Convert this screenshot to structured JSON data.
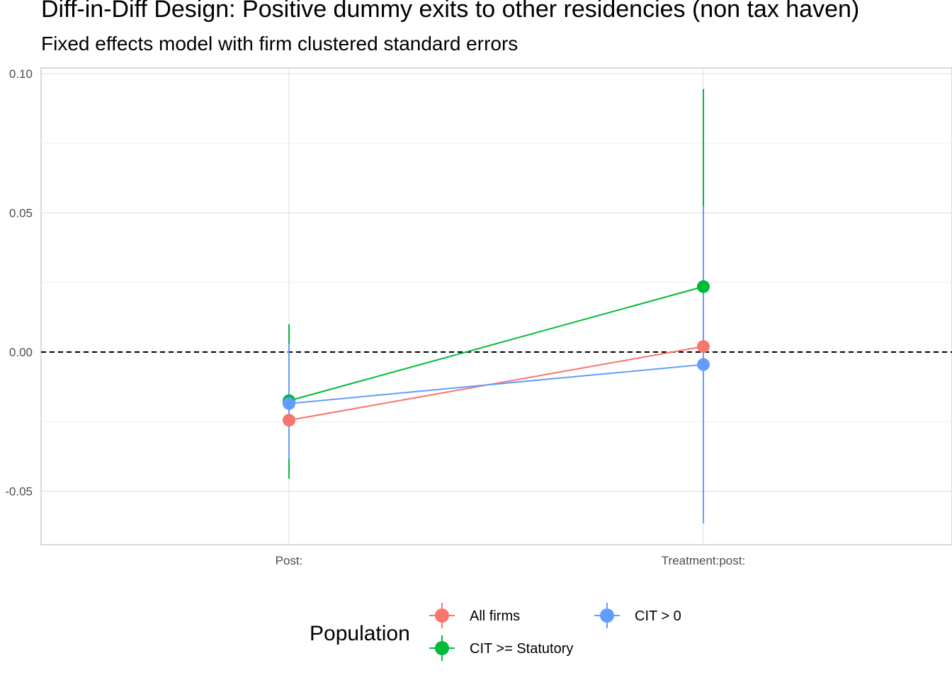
{
  "chart_data": {
    "type": "scatter",
    "title": "Diff-in-Diff Design: Positive dummy exits to other residencies (non tax haven)",
    "subtitle": "Fixed effects model with firm clustered standard errors",
    "categories": [
      "Post:",
      "Treatment:post:"
    ],
    "ylim": [
      -0.068,
      0.102
    ],
    "yticks": [
      -0.05,
      0.0,
      0.05,
      0.1
    ],
    "ytick_labels": [
      "-0.05",
      "0.00",
      "0.05",
      "0.10"
    ],
    "reference_line": 0.0,
    "grid": true,
    "legend": {
      "title": "Population",
      "placement": "bottom",
      "entries": [
        "All firms",
        "CIT > 0",
        "CIT >= Statutory"
      ]
    },
    "series": [
      {
        "name": "All firms",
        "color": "#F8766D",
        "values": [
          -0.0245,
          0.002
        ],
        "lower": [
          -0.0405,
          -0.0355
        ],
        "upper": [
          -0.0085,
          0.0395
        ]
      },
      {
        "name": "CIT >= Statutory",
        "color": "#00BA38",
        "values": [
          -0.0175,
          0.0235
        ],
        "lower": [
          -0.0455,
          -0.047
        ],
        "upper": [
          0.01,
          0.0945
        ]
      },
      {
        "name": "CIT > 0",
        "color": "#619CFF",
        "values": [
          -0.0185,
          -0.0045
        ],
        "lower": [
          -0.0385,
          -0.0615
        ],
        "upper": [
          0.003,
          0.0525
        ]
      }
    ]
  }
}
